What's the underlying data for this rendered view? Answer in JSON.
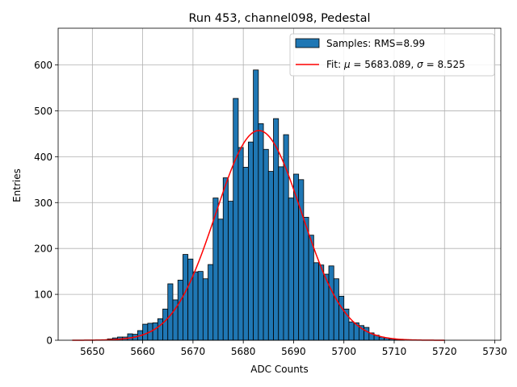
{
  "chart_data": {
    "type": "bar",
    "title": "Run 453, channel098, Pedestal",
    "xlabel": "ADC Counts",
    "ylabel": "Entries",
    "xlim": [
      5643.2,
      5731.2
    ],
    "ylim": [
      0,
      680
    ],
    "xticks": [
      5650,
      5660,
      5670,
      5680,
      5690,
      5700,
      5710,
      5720,
      5730
    ],
    "yticks": [
      0,
      100,
      200,
      300,
      400,
      500,
      600
    ],
    "grid": true,
    "legend_position": "top-right",
    "bin_width": 1,
    "histogram": {
      "name": "Samples: RMS=8.99",
      "color": "#1f77b4",
      "bins": [
        5653,
        5654,
        5655,
        5656,
        5657,
        5658,
        5659,
        5660,
        5661,
        5662,
        5663,
        5664,
        5665,
        5666,
        5667,
        5668,
        5669,
        5670,
        5671,
        5672,
        5673,
        5674,
        5675,
        5676,
        5677,
        5678,
        5679,
        5680,
        5681,
        5682,
        5683,
        5684,
        5685,
        5686,
        5687,
        5688,
        5689,
        5690,
        5691,
        5692,
        5693,
        5694,
        5695,
        5696,
        5697,
        5698,
        5699,
        5700,
        5701,
        5702,
        5703,
        5704,
        5705,
        5706,
        5707,
        5708,
        5709,
        5710,
        5711
      ],
      "values": [
        3,
        5,
        7,
        7,
        14,
        13,
        21,
        35,
        37,
        38,
        47,
        68,
        123,
        88,
        131,
        187,
        177,
        149,
        150,
        134,
        165,
        310,
        264,
        354,
        303,
        527,
        420,
        377,
        432,
        589,
        472,
        416,
        368,
        483,
        378,
        448,
        310,
        362,
        350,
        268,
        229,
        169,
        164,
        144,
        162,
        134,
        96,
        68,
        40,
        38,
        32,
        28,
        16,
        11,
        7,
        5,
        3,
        2,
        1
      ]
    },
    "fit": {
      "name": "Fit: μ = 5683.089, σ = 8.525",
      "color": "#ff0000",
      "mu": 5683.089,
      "sigma": 8.525,
      "amplitude": 457,
      "x_range": [
        5646,
        5720
      ]
    }
  },
  "legend": {
    "samples_label": "Samples: RMS=8.99",
    "fit_prefix": "Fit: ",
    "fit_mu_symbol": "μ",
    "fit_mid": " = 5683.089, ",
    "fit_sigma_symbol": "σ",
    "fit_suffix": " = 8.525"
  }
}
